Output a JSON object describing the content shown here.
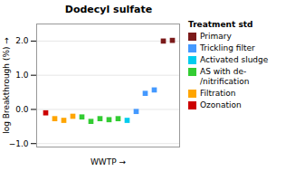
{
  "chart_data": {
    "type": "scatter",
    "title": "Dodecyl sulfate",
    "xlabel": "WWTP",
    "ylabel": "log Breakthrough (%)",
    "x": [
      1,
      2,
      3,
      4,
      5,
      6,
      7,
      8,
      9,
      10,
      11,
      12,
      13,
      14,
      15
    ],
    "series": [
      {
        "name": "Primary",
        "color": "#7b1a1a",
        "values": [
          null,
          null,
          null,
          null,
          null,
          null,
          null,
          null,
          null,
          null,
          null,
          null,
          null,
          2.0,
          2.02
        ]
      },
      {
        "name": "Trickling filter",
        "color": "#4499ff",
        "values": [
          null,
          null,
          null,
          null,
          null,
          null,
          null,
          null,
          null,
          null,
          -0.06,
          0.47,
          0.57,
          null,
          null
        ]
      },
      {
        "name": "Activated sludge",
        "color": "#00ccee",
        "values": [
          null,
          null,
          null,
          null,
          null,
          null,
          null,
          null,
          null,
          -0.32,
          null,
          null,
          null,
          null,
          null
        ]
      },
      {
        "name": "AS with de-\n/nitrification",
        "color": "#33cc33",
        "values": [
          null,
          null,
          null,
          null,
          -0.22,
          -0.35,
          -0.27,
          -0.3,
          -0.27,
          null,
          null,
          null,
          null,
          null,
          null
        ]
      },
      {
        "name": "Filtration",
        "color": "#ffa500",
        "values": [
          null,
          -0.27,
          -0.32,
          -0.2,
          null,
          null,
          null,
          null,
          null,
          null,
          null,
          null,
          null,
          null,
          null
        ]
      },
      {
        "name": "Ozonation",
        "color": "#cc0000",
        "values": [
          -0.1,
          null,
          null,
          null,
          null,
          null,
          null,
          null,
          null,
          null,
          null,
          null,
          null,
          null,
          null
        ]
      }
    ],
    "legend_title": "Treatment std",
    "legend": "right",
    "marker": "square",
    "xlim": [
      0.0,
      15.8
    ],
    "xticks": [],
    "ylim": [
      -1.1,
      2.5
    ],
    "yticks": [
      -1,
      0,
      1,
      2
    ],
    "tick_labels": "y",
    "grid": true
  }
}
